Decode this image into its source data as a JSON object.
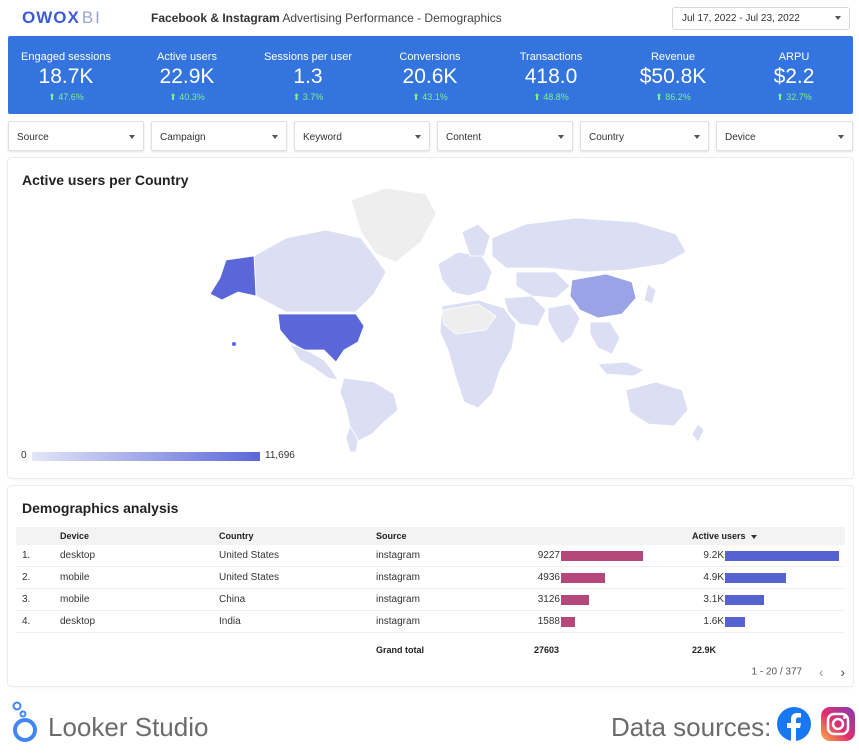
{
  "brand": {
    "logo_main": "OWOX",
    "logo_sub": "BI"
  },
  "header": {
    "title_bold": "Facebook & Instagram",
    "title_rest": " Advertising Performance - Demographics",
    "date_range": "Jul 17, 2022 - Jul 23, 2022"
  },
  "kpis": [
    {
      "label": "Engaged sessions",
      "value": "18.7K",
      "delta": "⬆ 47.6%"
    },
    {
      "label": "Active users",
      "value": "22.9K",
      "delta": "⬆ 40.3%"
    },
    {
      "label": "Sessions per user",
      "value": "1.3",
      "delta": "⬆ 3.7%"
    },
    {
      "label": "Conversions",
      "value": "20.6K",
      "delta": "⬆ 43.1%"
    },
    {
      "label": "Transactions",
      "value": "418.0",
      "delta": "⬆ 48.8%"
    },
    {
      "label": "Revenue",
      "value": "$50.8K",
      "delta": "⬆ 86.2%"
    },
    {
      "label": "ARPU",
      "value": "$2.2",
      "delta": "⬆ 32.7%"
    }
  ],
  "filters": [
    "Source",
    "Campaign",
    "Keyword",
    "Content",
    "Country",
    "Device"
  ],
  "map": {
    "title": "Active users per Country",
    "legend_min": "0",
    "legend_max": "11,696",
    "colors": {
      "high": "#5b67d9",
      "mid": "#9aa3e6",
      "low": "#dcdff4",
      "none": "#eeeeee"
    }
  },
  "demographics": {
    "title": "Demographics analysis",
    "headers": {
      "device": "Device",
      "country": "Country",
      "source": "Source",
      "active_users": "Active users"
    },
    "rows": [
      {
        "num": "1.",
        "device": "desktop",
        "country": "United States",
        "source": "instagram",
        "value_label": "9227",
        "value": 9227,
        "users_label": "9.2K",
        "users": 9227
      },
      {
        "num": "2.",
        "device": "mobile",
        "country": "United States",
        "source": "instagram",
        "value_label": "4936",
        "value": 4936,
        "users_label": "4.9K",
        "users": 4936
      },
      {
        "num": "3.",
        "device": "mobile",
        "country": "China",
        "source": "instagram",
        "value_label": "3126",
        "value": 3126,
        "users_label": "3.1K",
        "users": 3126
      },
      {
        "num": "4.",
        "device": "desktop",
        "country": "India",
        "source": "instagram",
        "value_label": "1588",
        "value": 1588,
        "users_label": "1.6K",
        "users": 1588
      }
    ],
    "total_label": "Grand total",
    "total_value": "27603",
    "total_users": "22.9K",
    "pagination": "1 - 20 / 377",
    "prev_icon": "‹",
    "next_icon": "›"
  },
  "footer": {
    "looker": "Looker Studio",
    "data_sources": "Data sources:"
  }
}
